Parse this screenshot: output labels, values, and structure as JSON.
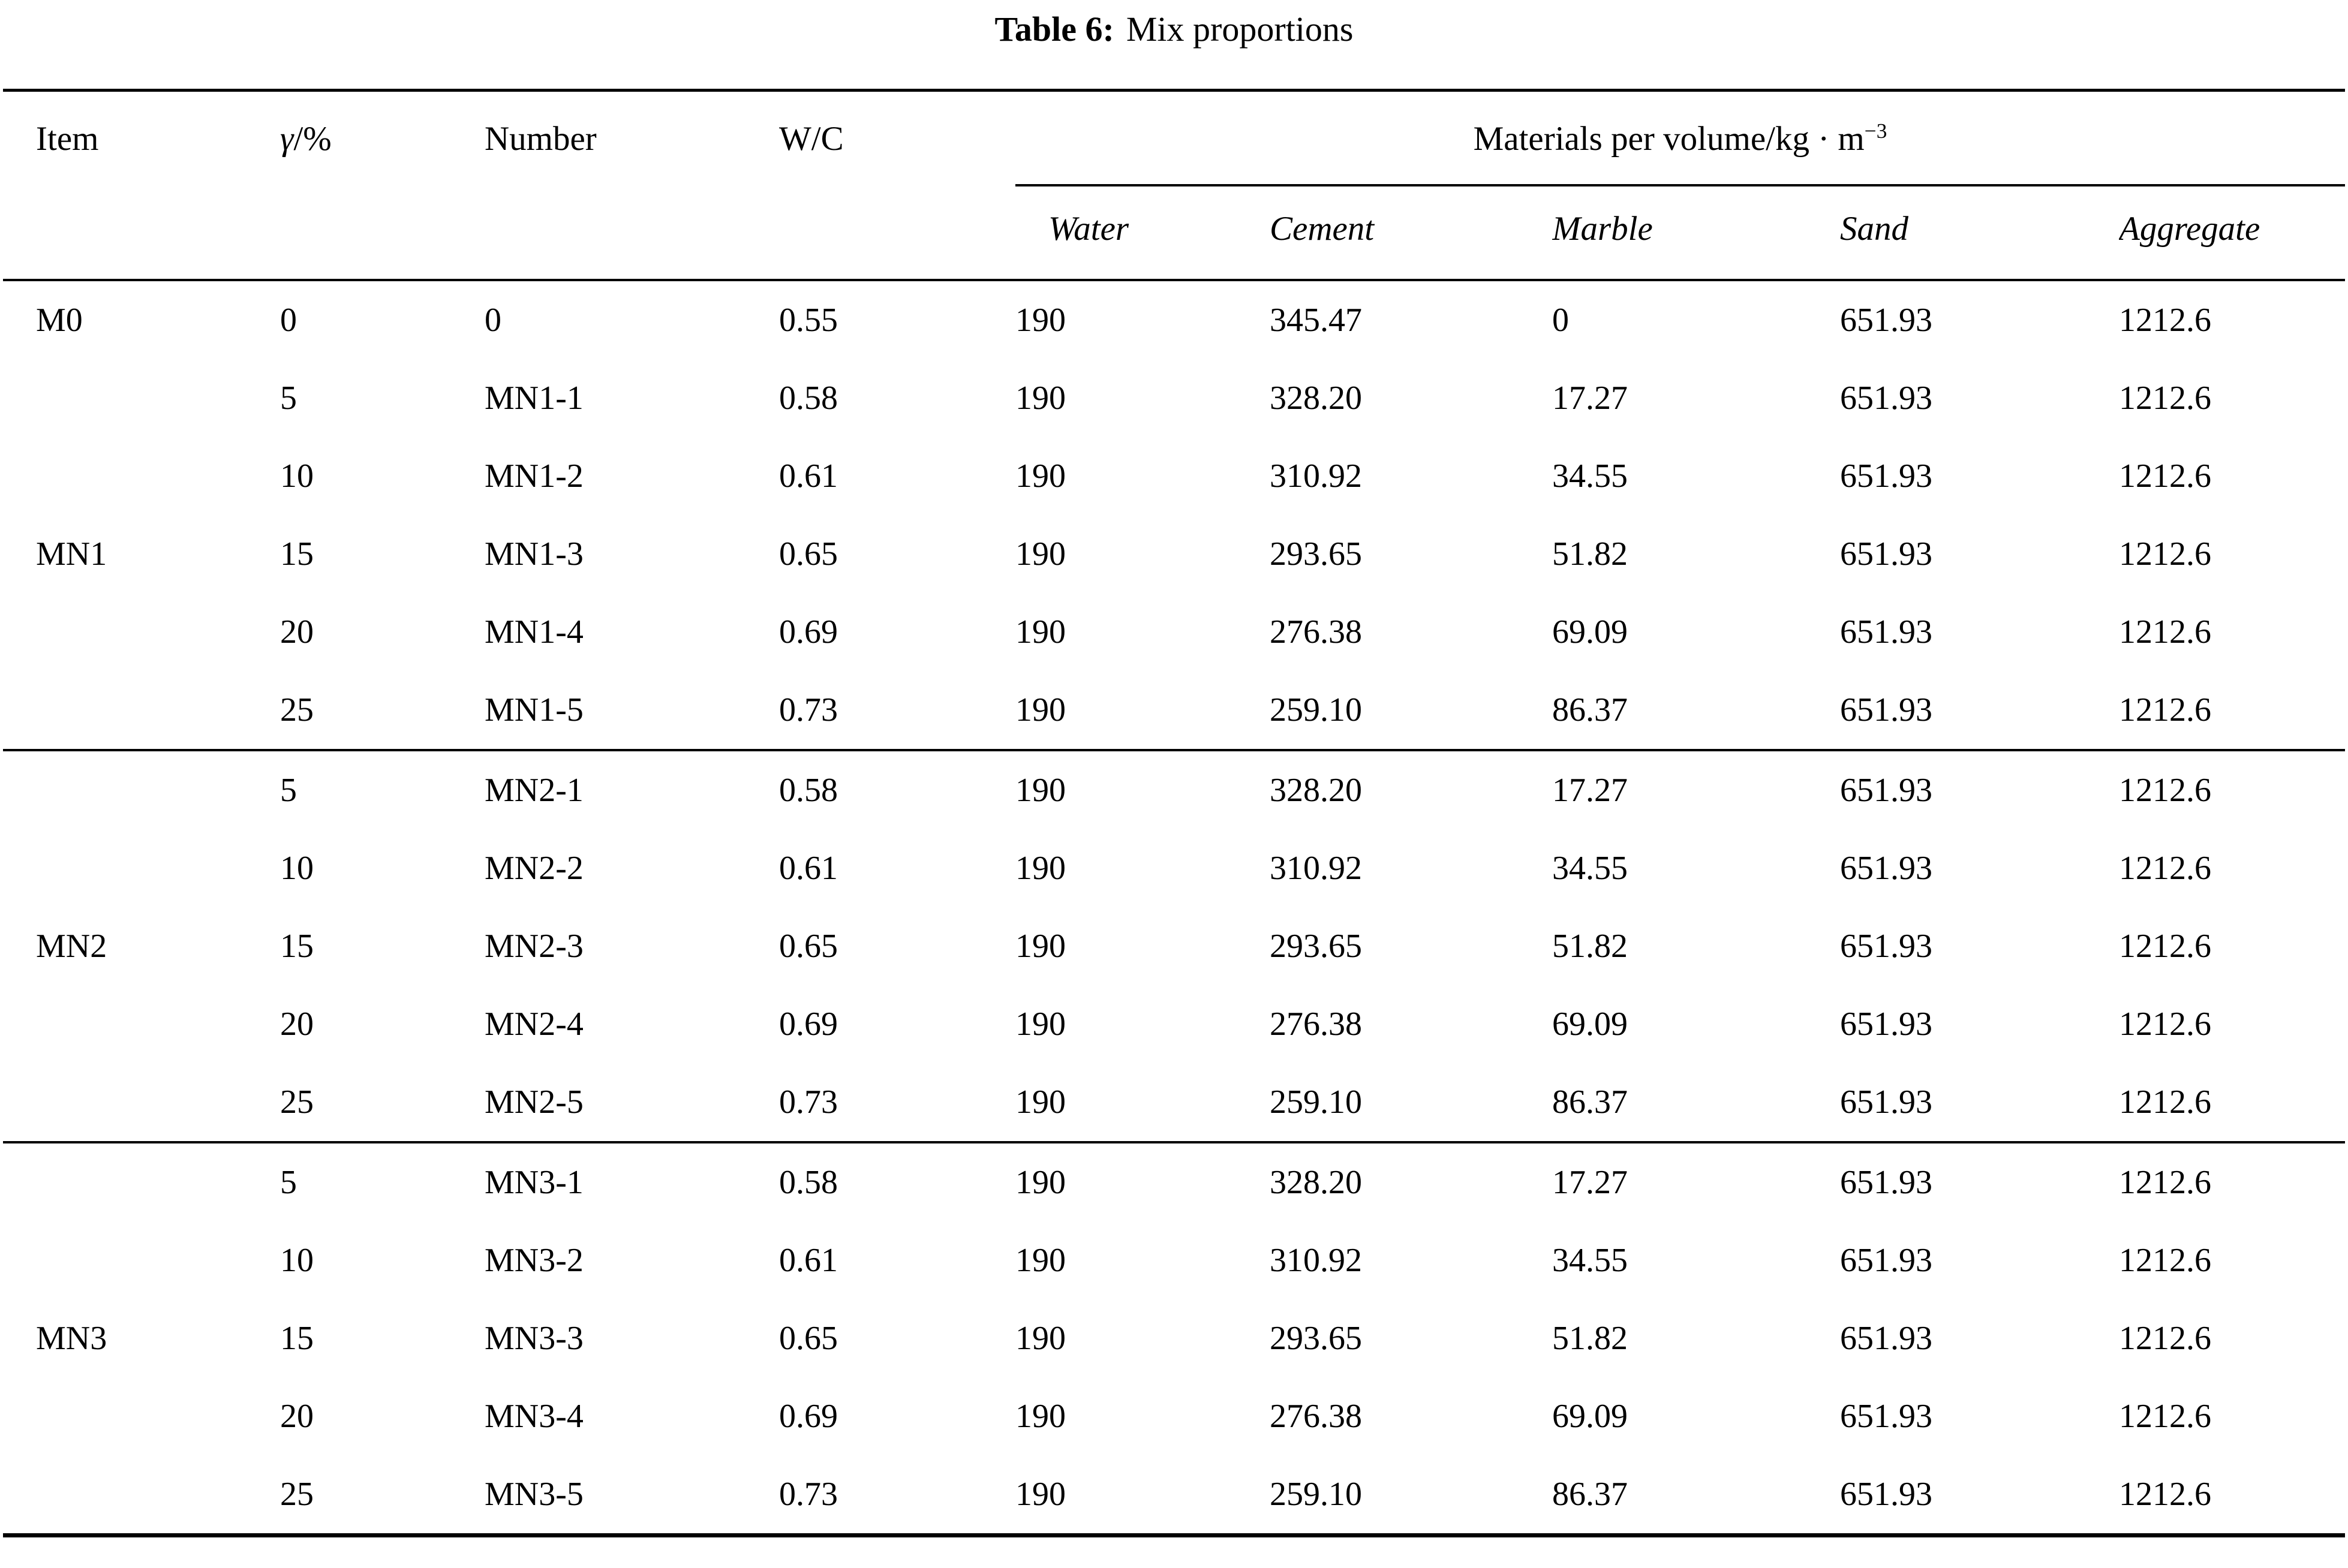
{
  "title": {
    "label": "Table 6:",
    "text": "Mix proportions"
  },
  "table": {
    "header": {
      "item": "Item",
      "gamma_symbol": "γ",
      "gamma_suffix": "/%",
      "number": "Number",
      "wc": "W/C",
      "materials_group_prefix": "Materials per volume/kg · m",
      "materials_group_sup": "−3",
      "materials": [
        "Water",
        "Cement",
        "Marble",
        "Sand",
        "Aggregate"
      ]
    },
    "sections": [
      {
        "rows": [
          {
            "item": "M0",
            "gamma": "0",
            "number": "0",
            "wc": "0.55",
            "water": "190",
            "cement": "345.47",
            "marble": "0",
            "sand": "651.93",
            "aggregate": "1212.6"
          },
          {
            "item": "",
            "gamma": "5",
            "number": "MN1-1",
            "wc": "0.58",
            "water": "190",
            "cement": "328.20",
            "marble": "17.27",
            "sand": "651.93",
            "aggregate": "1212.6"
          },
          {
            "item": "",
            "gamma": "10",
            "number": "MN1-2",
            "wc": "0.61",
            "water": "190",
            "cement": "310.92",
            "marble": "34.55",
            "sand": "651.93",
            "aggregate": "1212.6"
          },
          {
            "item": "MN1",
            "gamma": "15",
            "number": "MN1-3",
            "wc": "0.65",
            "water": "190",
            "cement": "293.65",
            "marble": "51.82",
            "sand": "651.93",
            "aggregate": "1212.6"
          },
          {
            "item": "",
            "gamma": "20",
            "number": "MN1-4",
            "wc": "0.69",
            "water": "190",
            "cement": "276.38",
            "marble": "69.09",
            "sand": "651.93",
            "aggregate": "1212.6"
          },
          {
            "item": "",
            "gamma": "25",
            "number": "MN1-5",
            "wc": "0.73",
            "water": "190",
            "cement": "259.10",
            "marble": "86.37",
            "sand": "651.93",
            "aggregate": "1212.6"
          }
        ]
      },
      {
        "rows": [
          {
            "item": "",
            "gamma": "5",
            "number": "MN2-1",
            "wc": "0.58",
            "water": "190",
            "cement": "328.20",
            "marble": "17.27",
            "sand": "651.93",
            "aggregate": "1212.6"
          },
          {
            "item": "",
            "gamma": "10",
            "number": "MN2-2",
            "wc": "0.61",
            "water": "190",
            "cement": "310.92",
            "marble": "34.55",
            "sand": "651.93",
            "aggregate": "1212.6"
          },
          {
            "item": "MN2",
            "gamma": "15",
            "number": "MN2-3",
            "wc": "0.65",
            "water": "190",
            "cement": "293.65",
            "marble": "51.82",
            "sand": "651.93",
            "aggregate": "1212.6"
          },
          {
            "item": "",
            "gamma": "20",
            "number": "MN2-4",
            "wc": "0.69",
            "water": "190",
            "cement": "276.38",
            "marble": "69.09",
            "sand": "651.93",
            "aggregate": "1212.6"
          },
          {
            "item": "",
            "gamma": "25",
            "number": "MN2-5",
            "wc": "0.73",
            "water": "190",
            "cement": "259.10",
            "marble": "86.37",
            "sand": "651.93",
            "aggregate": "1212.6"
          }
        ]
      },
      {
        "rows": [
          {
            "item": "",
            "gamma": "5",
            "number": "MN3-1",
            "wc": "0.58",
            "water": "190",
            "cement": "328.20",
            "marble": "17.27",
            "sand": "651.93",
            "aggregate": "1212.6"
          },
          {
            "item": "",
            "gamma": "10",
            "number": "MN3-2",
            "wc": "0.61",
            "water": "190",
            "cement": "310.92",
            "marble": "34.55",
            "sand": "651.93",
            "aggregate": "1212.6"
          },
          {
            "item": "MN3",
            "gamma": "15",
            "number": "MN3-3",
            "wc": "0.65",
            "water": "190",
            "cement": "293.65",
            "marble": "51.82",
            "sand": "651.93",
            "aggregate": "1212.6"
          },
          {
            "item": "",
            "gamma": "20",
            "number": "MN3-4",
            "wc": "0.69",
            "water": "190",
            "cement": "276.38",
            "marble": "69.09",
            "sand": "651.93",
            "aggregate": "1212.6"
          },
          {
            "item": "",
            "gamma": "25",
            "number": "MN3-5",
            "wc": "0.73",
            "water": "190",
            "cement": "259.10",
            "marble": "86.37",
            "sand": "651.93",
            "aggregate": "1212.6"
          }
        ]
      }
    ]
  }
}
